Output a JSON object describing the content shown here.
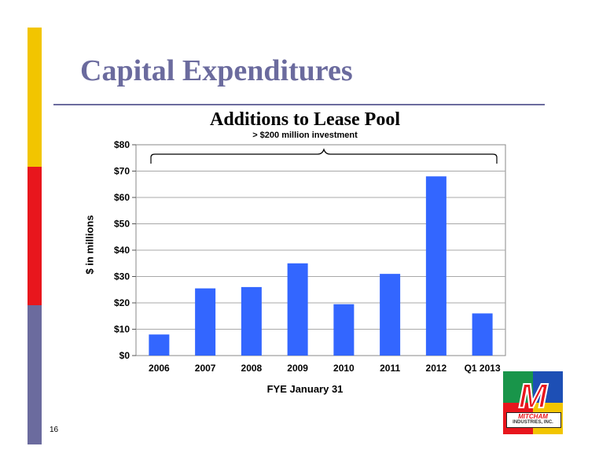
{
  "slide": {
    "title": "Capital Expenditures",
    "page_number": "16",
    "colors": {
      "title": "#6b6b9e",
      "sidebar": [
        "#f2c500",
        "#e8161d",
        "#6b6b9e"
      ]
    }
  },
  "logo": {
    "letter": "M",
    "name": "MITCHAM",
    "subname": "INDUSTRIES, INC."
  },
  "chart_data": {
    "type": "bar",
    "title": "Additions to Lease Pool",
    "subtitle": "> $200 million investment",
    "categories": [
      "2006",
      "2007",
      "2008",
      "2009",
      "2010",
      "2011",
      "2012",
      "Q1 2013"
    ],
    "values": [
      8,
      25.5,
      26,
      35,
      19.5,
      31,
      68,
      16
    ],
    "xlabel": "FYE January 31",
    "ylabel": "$ in millions",
    "ylim": [
      0,
      80
    ],
    "yticks": [
      0,
      10,
      20,
      30,
      40,
      50,
      60,
      70,
      80
    ],
    "ytick_labels": [
      "$0",
      "$10",
      "$20",
      "$30",
      "$40",
      "$50",
      "$60",
      "$70",
      "$80"
    ],
    "grid": true,
    "bar_color": "#3366ff",
    "bracket": "spans all categories"
  }
}
